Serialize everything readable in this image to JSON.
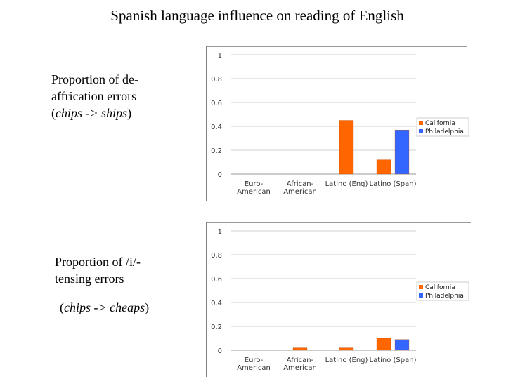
{
  "title": "Spanish language influence on reading of English",
  "descriptions": [
    {
      "line1": "Proportion of de-",
      "line2": "affrication errors",
      "ex_open": "(",
      "ex_text": "chips -> ships",
      "ex_close": ")"
    },
    {
      "line1": "Proportion of /i/-",
      "line2": "tensing errors",
      "ex_open": "(",
      "ex_text": "chips -> cheaps",
      "ex_close": ")"
    }
  ],
  "chart_data": [
    {
      "type": "bar",
      "categories": [
        [
          "Euro-",
          "American"
        ],
        [
          "African-",
          "American"
        ],
        [
          "Latino (Eng)"
        ],
        [
          "Latino (Span)"
        ]
      ],
      "series": [
        {
          "name": "California",
          "color": "#ff6600",
          "values": [
            0,
            0,
            0.45,
            0.12
          ]
        },
        {
          "name": "Philadelphia",
          "color": "#3366ff",
          "values": [
            null,
            null,
            null,
            0.37
          ]
        }
      ],
      "yticks": [
        "0",
        "0.2",
        "0.4",
        "0.6",
        "0.8",
        "1"
      ],
      "ylim": [
        0,
        1
      ],
      "grid": true,
      "legend_position": "right"
    },
    {
      "type": "bar",
      "categories": [
        [
          "Euro-",
          "American"
        ],
        [
          "African-",
          "American"
        ],
        [
          "Latino (Eng)"
        ],
        [
          "Latino (Span)"
        ]
      ],
      "series": [
        {
          "name": "California",
          "color": "#ff6600",
          "values": [
            0,
            0.02,
            0.02,
            0.1
          ]
        },
        {
          "name": "Philadelphia",
          "color": "#3366ff",
          "values": [
            null,
            null,
            null,
            0.09
          ]
        }
      ],
      "yticks": [
        "0",
        "0.2",
        "0.4",
        "0.6",
        "0.8",
        "1"
      ],
      "ylim": [
        0,
        1
      ],
      "grid": true,
      "legend_position": "right"
    }
  ]
}
